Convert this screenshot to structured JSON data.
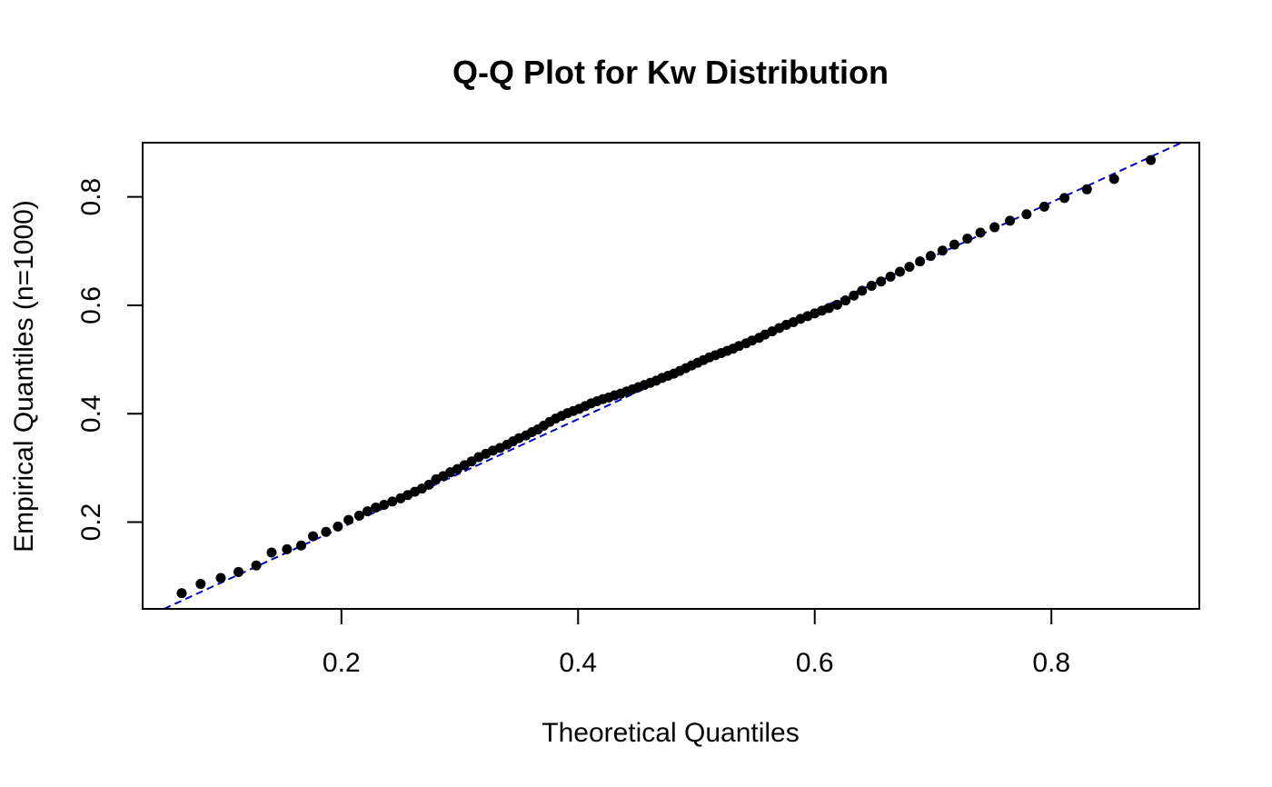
{
  "chart_data": {
    "type": "scatter",
    "title": "Q-Q Plot for Kw Distribution",
    "xlabel": "Theoretical Quantiles",
    "ylabel": "Empirical Quantiles (n=1000)",
    "xlim": [
      0.032,
      0.925
    ],
    "ylim": [
      0.04,
      0.9
    ],
    "x_ticks": [
      {
        "value": 0.2,
        "label": "0.2"
      },
      {
        "value": 0.4,
        "label": "0.4"
      },
      {
        "value": 0.6,
        "label": "0.6"
      },
      {
        "value": 0.8,
        "label": "0.8"
      }
    ],
    "y_ticks": [
      {
        "value": 0.2,
        "label": "0.2"
      },
      {
        "value": 0.4,
        "label": "0.4"
      },
      {
        "value": 0.6,
        "label": "0.6"
      },
      {
        "value": 0.8,
        "label": "0.8"
      }
    ],
    "reference_line": {
      "style": "dashed",
      "color": "#0000cc",
      "intercept": -0.01,
      "slope": 1.0
    },
    "point_color": "#000000",
    "grid": false,
    "legend": "none",
    "points": [
      [
        0.065,
        0.069
      ],
      [
        0.081,
        0.086
      ],
      [
        0.098,
        0.097
      ],
      [
        0.113,
        0.108
      ],
      [
        0.128,
        0.12
      ],
      [
        0.141,
        0.144
      ],
      [
        0.154,
        0.15
      ],
      [
        0.166,
        0.157
      ],
      [
        0.176,
        0.174
      ],
      [
        0.187,
        0.182
      ],
      [
        0.197,
        0.192
      ],
      [
        0.206,
        0.204
      ],
      [
        0.215,
        0.212
      ],
      [
        0.222,
        0.22
      ],
      [
        0.229,
        0.227
      ],
      [
        0.236,
        0.232
      ],
      [
        0.243,
        0.238
      ],
      [
        0.25,
        0.244
      ],
      [
        0.256,
        0.25
      ],
      [
        0.262,
        0.256
      ],
      [
        0.268,
        0.262
      ],
      [
        0.274,
        0.269
      ],
      [
        0.28,
        0.279
      ],
      [
        0.286,
        0.285
      ],
      [
        0.292,
        0.292
      ],
      [
        0.298,
        0.298
      ],
      [
        0.304,
        0.305
      ],
      [
        0.31,
        0.312
      ],
      [
        0.316,
        0.32
      ],
      [
        0.322,
        0.326
      ],
      [
        0.328,
        0.332
      ],
      [
        0.334,
        0.337
      ],
      [
        0.34,
        0.343
      ],
      [
        0.345,
        0.349
      ],
      [
        0.35,
        0.355
      ],
      [
        0.356,
        0.36
      ],
      [
        0.361,
        0.366
      ],
      [
        0.366,
        0.371
      ],
      [
        0.371,
        0.378
      ],
      [
        0.376,
        0.385
      ],
      [
        0.381,
        0.391
      ],
      [
        0.386,
        0.396
      ],
      [
        0.391,
        0.401
      ],
      [
        0.396,
        0.405
      ],
      [
        0.401,
        0.409
      ],
      [
        0.406,
        0.414
      ],
      [
        0.411,
        0.419
      ],
      [
        0.416,
        0.423
      ],
      [
        0.421,
        0.427
      ],
      [
        0.426,
        0.43
      ],
      [
        0.431,
        0.434
      ],
      [
        0.436,
        0.437
      ],
      [
        0.441,
        0.441
      ],
      [
        0.446,
        0.445
      ],
      [
        0.451,
        0.449
      ],
      [
        0.456,
        0.453
      ],
      [
        0.461,
        0.457
      ],
      [
        0.466,
        0.461
      ],
      [
        0.471,
        0.466
      ],
      [
        0.476,
        0.47
      ],
      [
        0.481,
        0.474
      ],
      [
        0.486,
        0.479
      ],
      [
        0.491,
        0.484
      ],
      [
        0.496,
        0.489
      ],
      [
        0.501,
        0.494
      ],
      [
        0.506,
        0.499
      ],
      [
        0.511,
        0.504
      ],
      [
        0.516,
        0.508
      ],
      [
        0.521,
        0.512
      ],
      [
        0.526,
        0.516
      ],
      [
        0.531,
        0.52
      ],
      [
        0.536,
        0.525
      ],
      [
        0.542,
        0.53
      ],
      [
        0.547,
        0.535
      ],
      [
        0.553,
        0.54
      ],
      [
        0.558,
        0.546
      ],
      [
        0.564,
        0.552
      ],
      [
        0.57,
        0.558
      ],
      [
        0.576,
        0.564
      ],
      [
        0.582,
        0.569
      ],
      [
        0.588,
        0.575
      ],
      [
        0.594,
        0.58
      ],
      [
        0.6,
        0.585
      ],
      [
        0.606,
        0.59
      ],
      [
        0.612,
        0.595
      ],
      [
        0.619,
        0.601
      ],
      [
        0.626,
        0.609
      ],
      [
        0.633,
        0.618
      ],
      [
        0.64,
        0.627
      ],
      [
        0.648,
        0.636
      ],
      [
        0.656,
        0.644
      ],
      [
        0.664,
        0.653
      ],
      [
        0.672,
        0.662
      ],
      [
        0.68,
        0.671
      ],
      [
        0.689,
        0.681
      ],
      [
        0.698,
        0.691
      ],
      [
        0.708,
        0.701
      ],
      [
        0.718,
        0.712
      ],
      [
        0.729,
        0.723
      ],
      [
        0.74,
        0.734
      ],
      [
        0.752,
        0.744
      ],
      [
        0.765,
        0.756
      ],
      [
        0.779,
        0.768
      ],
      [
        0.794,
        0.782
      ],
      [
        0.811,
        0.798
      ],
      [
        0.83,
        0.814
      ],
      [
        0.853,
        0.833
      ],
      [
        0.884,
        0.868
      ]
    ]
  }
}
